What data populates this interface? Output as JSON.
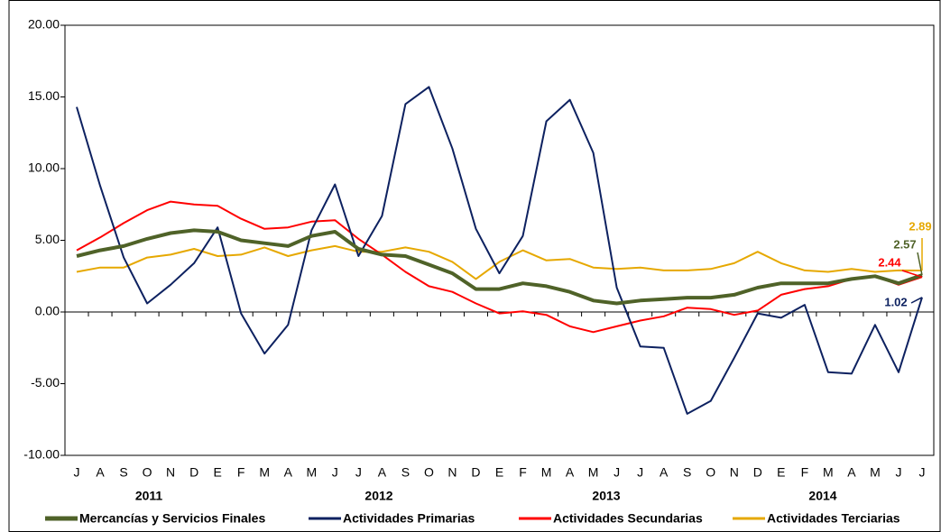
{
  "chart_data": {
    "type": "line",
    "categories": [
      "J",
      "A",
      "S",
      "O",
      "N",
      "D",
      "E",
      "F",
      "M",
      "A",
      "M",
      "J",
      "J",
      "A",
      "S",
      "O",
      "N",
      "D",
      "E",
      "F",
      "M",
      "A",
      "M",
      "J",
      "J",
      "A",
      "S",
      "O",
      "N",
      "D",
      "E",
      "F",
      "M",
      "A",
      "M",
      "J",
      "J"
    ],
    "years": [
      "2011",
      "2012",
      "2013",
      "2014"
    ],
    "ylim": [
      -10,
      20
    ],
    "yticks": [
      {
        "value": -10,
        "label": "-10.00"
      },
      {
        "value": -5,
        "label": "-5.00"
      },
      {
        "value": 0,
        "label": "0.00"
      },
      {
        "value": 5,
        "label": "5.00"
      },
      {
        "value": 10,
        "label": "10.00"
      },
      {
        "value": 15,
        "label": "15.00"
      },
      {
        "value": 20,
        "label": "20.00"
      }
    ],
    "series": [
      {
        "name": "Mercancías y Servicios Finales",
        "color": "#4f6228",
        "values": [
          3.9,
          4.3,
          4.6,
          5.1,
          5.5,
          5.7,
          5.6,
          5.0,
          4.8,
          4.6,
          5.3,
          5.6,
          4.4,
          4.0,
          3.9,
          3.3,
          2.7,
          1.6,
          1.6,
          2.0,
          1.8,
          1.4,
          0.8,
          0.6,
          0.8,
          0.9,
          1.0,
          1.0,
          1.2,
          1.7,
          2.0,
          2.0,
          2.0,
          2.3,
          2.5,
          2.0,
          2.57
        ]
      },
      {
        "name": "Actividades Primarias",
        "color": "#0d2160",
        "values": [
          14.3,
          8.8,
          3.8,
          0.6,
          1.9,
          3.4,
          5.9,
          -0.1,
          -2.9,
          -0.9,
          5.7,
          8.9,
          3.9,
          6.7,
          14.5,
          15.7,
          11.4,
          5.8,
          2.7,
          5.3,
          13.3,
          14.8,
          11.1,
          1.7,
          -2.4,
          -2.5,
          -7.1,
          -6.2,
          -3.2,
          -0.1,
          -0.4,
          0.5,
          -4.2,
          -4.3,
          -0.9,
          -4.2,
          1.02
        ]
      },
      {
        "name": "Actividades Secundarias",
        "color": "#ff0000",
        "values": [
          4.3,
          5.2,
          6.2,
          7.1,
          7.7,
          7.5,
          7.4,
          6.5,
          5.8,
          5.9,
          6.3,
          6.4,
          5.1,
          4.0,
          2.8,
          1.8,
          1.4,
          0.6,
          -0.1,
          0.05,
          -0.2,
          -1.0,
          -1.4,
          -1.0,
          -0.6,
          -0.3,
          0.3,
          0.2,
          -0.2,
          0.1,
          1.2,
          1.6,
          1.8,
          2.3,
          2.5,
          1.9,
          2.44
        ]
      },
      {
        "name": "Actividades Terciarias",
        "color": "#e6a800",
        "values": [
          2.8,
          3.1,
          3.1,
          3.8,
          4.0,
          4.4,
          3.9,
          4.0,
          4.5,
          3.9,
          4.3,
          4.6,
          4.2,
          4.2,
          4.5,
          4.2,
          3.5,
          2.3,
          3.5,
          4.3,
          3.6,
          3.7,
          3.1,
          3.0,
          3.1,
          2.9,
          2.9,
          3.0,
          3.4,
          4.2,
          3.4,
          2.9,
          2.8,
          3.0,
          2.8,
          2.9,
          2.89
        ]
      }
    ]
  }
}
